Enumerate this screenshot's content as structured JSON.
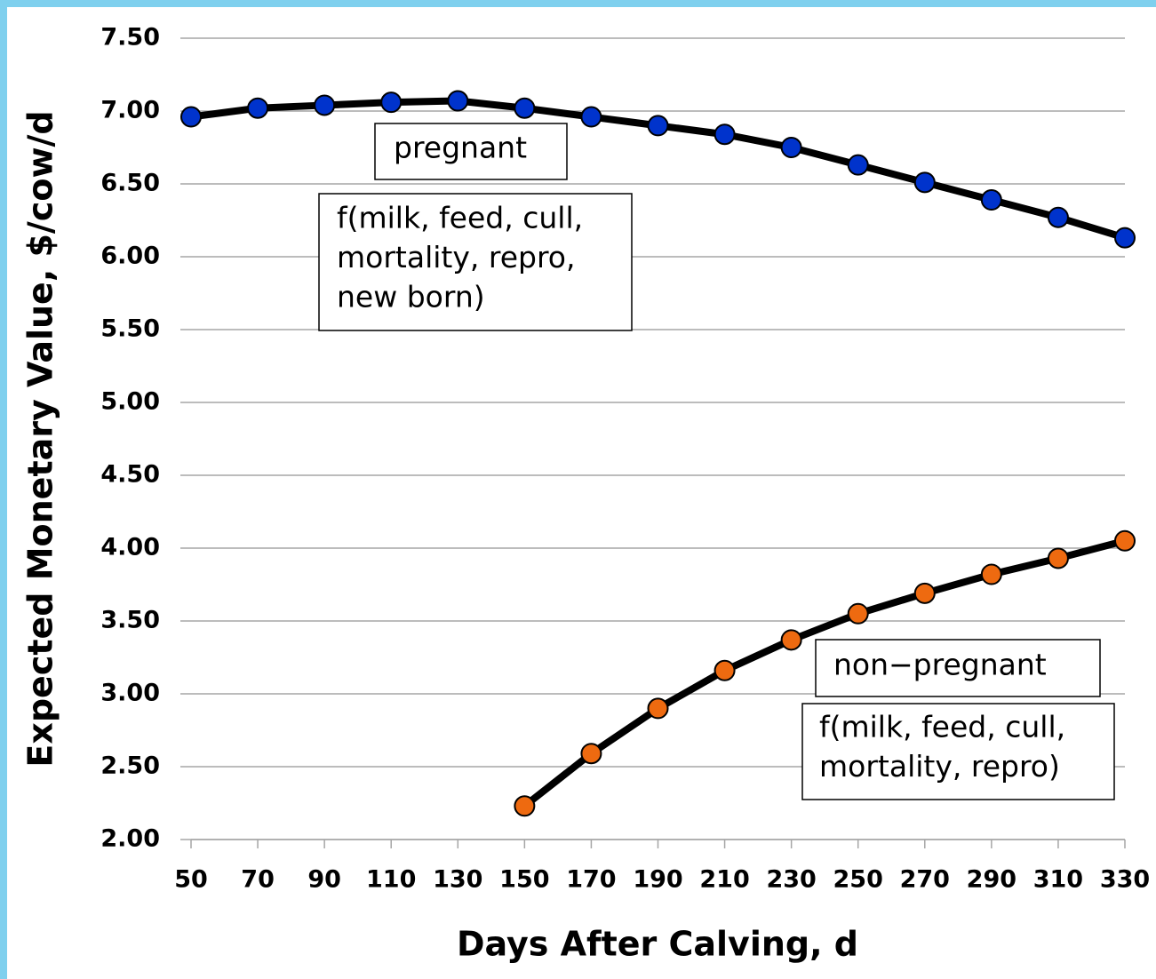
{
  "chart_data": {
    "type": "line",
    "x": [
      50,
      70,
      90,
      110,
      130,
      150,
      170,
      190,
      210,
      230,
      250,
      270,
      290,
      310,
      330
    ],
    "series": [
      {
        "name": "pregnant",
        "color": "#0033cc",
        "values": [
          6.96,
          7.02,
          7.04,
          7.06,
          7.07,
          7.02,
          6.96,
          6.9,
          6.84,
          6.75,
          6.63,
          6.51,
          6.39,
          6.27,
          6.13
        ]
      },
      {
        "name": "non-pregnant",
        "color": "#ee6a10",
        "values": [
          null,
          null,
          null,
          null,
          null,
          2.23,
          2.59,
          2.9,
          3.16,
          3.37,
          3.55,
          3.69,
          3.82,
          3.93,
          4.05
        ]
      }
    ],
    "xlabel": "Days After Calving, d",
    "ylabel": "Expected Monetary Value, $/cow/d",
    "xlim": [
      50,
      330
    ],
    "xticks": [
      50,
      70,
      90,
      110,
      130,
      150,
      170,
      190,
      210,
      230,
      250,
      270,
      290,
      310,
      330
    ],
    "ylim": [
      2,
      7.5
    ],
    "yticks": [
      {
        "value": 2,
        "label": "2.00"
      },
      {
        "value": 2.5,
        "label": "2.50"
      },
      {
        "value": 3,
        "label": "3.00"
      },
      {
        "value": 3.5,
        "label": "3.50"
      },
      {
        "value": 4,
        "label": "4.00"
      },
      {
        "value": 4.5,
        "label": "4.50"
      },
      {
        "value": 5,
        "label": "5.00"
      },
      {
        "value": 5.5,
        "label": "5.50"
      },
      {
        "value": 6,
        "label": "6.00"
      },
      {
        "value": 6.5,
        "label": "6.50"
      },
      {
        "value": 7,
        "label": "7.00"
      },
      {
        "value": 7.5,
        "label": "7.50"
      }
    ],
    "grid": true,
    "annotations": [
      {
        "lines": [
          "pregnant"
        ]
      },
      {
        "lines": [
          "f(milk, feed, cull,",
          "mortality, repro,",
          "new born)"
        ]
      },
      {
        "lines": [
          "non−pregnant"
        ]
      },
      {
        "lines": [
          "f(milk, feed, cull,",
          "mortality, repro)"
        ]
      }
    ]
  }
}
